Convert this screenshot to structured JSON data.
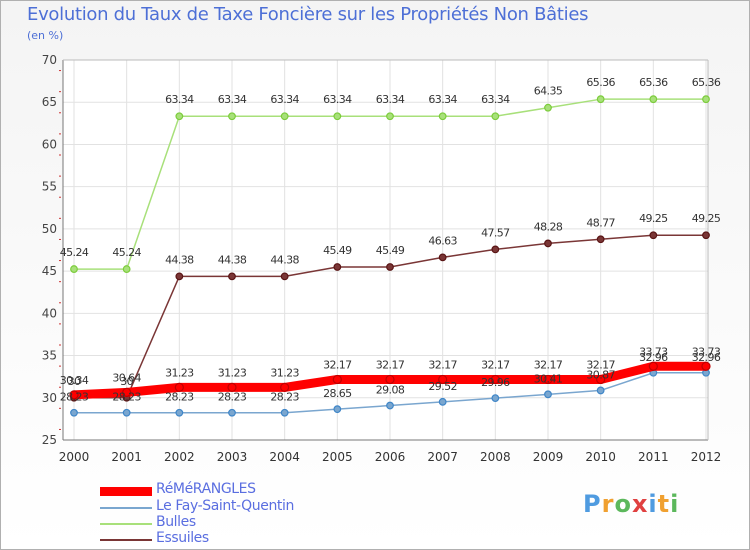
{
  "header": {
    "title": "Evolution du Taux de Taxe Foncière sur les Propriétés Non Bâties",
    "subtitle": "(en %)"
  },
  "brand": {
    "text": "Proxiti",
    "colors": [
      "#4f9be0",
      "#f0a030",
      "#5cb85c",
      "#e04040"
    ]
  },
  "chart_data": {
    "type": "line",
    "title": "Evolution du Taux de Taxe Foncière sur les Propriétés Non Bâties",
    "ylabel": "(en %)",
    "xlabel": "",
    "ylim": [
      25,
      70
    ],
    "yticks": [
      25,
      30,
      35,
      40,
      45,
      50,
      55,
      60,
      65,
      70
    ],
    "grid": true,
    "legend_position": "bottom-left",
    "categories": [
      "2000",
      "2001",
      "2002",
      "2003",
      "2004",
      "2005",
      "2006",
      "2007",
      "2008",
      "2009",
      "2010",
      "2011",
      "2012"
    ],
    "series": [
      {
        "name": "RéMéRANGLES",
        "color": "#ff0000",
        "marker": "#c00000",
        "values": [
          30.34,
          30.64,
          31.23,
          31.23,
          31.23,
          32.17,
          32.17,
          32.17,
          32.17,
          32.17,
          32.17,
          33.73,
          33.73
        ],
        "labels": [
          "30.34",
          "30.64",
          "31.23",
          "31.23",
          "31.23",
          "32.17",
          "32.17",
          "32.17",
          "32.17",
          "32.17",
          "32.17",
          "33.73",
          "33.73"
        ]
      },
      {
        "name": "Le Fay-Saint-Quentin",
        "color": "#7aa6cf",
        "marker": "#3f86c8",
        "values": [
          28.23,
          28.23,
          28.23,
          28.23,
          28.23,
          28.65,
          29.08,
          29.52,
          29.96,
          30.41,
          30.87,
          32.96,
          32.96
        ],
        "labels": [
          "28.23",
          "28.23",
          "28.23",
          "28.23",
          "28.23",
          "28.65",
          "29.08",
          "29.52",
          "29.96",
          "30.41",
          "30.87",
          "32.96",
          "32.96"
        ]
      },
      {
        "name": "Bulles",
        "color": "#a8e07a",
        "marker": "#7ccc3c",
        "values": [
          45.24,
          45.24,
          63.34,
          63.34,
          63.34,
          63.34,
          63.34,
          63.34,
          63.34,
          64.35,
          65.36,
          65.36,
          65.36
        ],
        "labels": [
          "45.24",
          "45.24",
          "63.34",
          "63.34",
          "63.34",
          "63.34",
          "63.34",
          "63.34",
          "63.34",
          "64.35",
          "65.36",
          "65.36",
          "65.36"
        ]
      },
      {
        "name": "Essuiles",
        "color": "#7a3636",
        "marker": "#5a1515",
        "values": [
          30,
          30,
          44.38,
          44.38,
          44.38,
          45.49,
          45.49,
          46.63,
          47.57,
          48.28,
          48.77,
          49.25,
          49.25
        ],
        "labels": [
          "30",
          "30",
          "44.38",
          "44.38",
          "44.38",
          "45.49",
          "45.49",
          "46.63",
          "47.57",
          "48.28",
          "48.77",
          "49.25",
          "49.25"
        ]
      }
    ]
  }
}
